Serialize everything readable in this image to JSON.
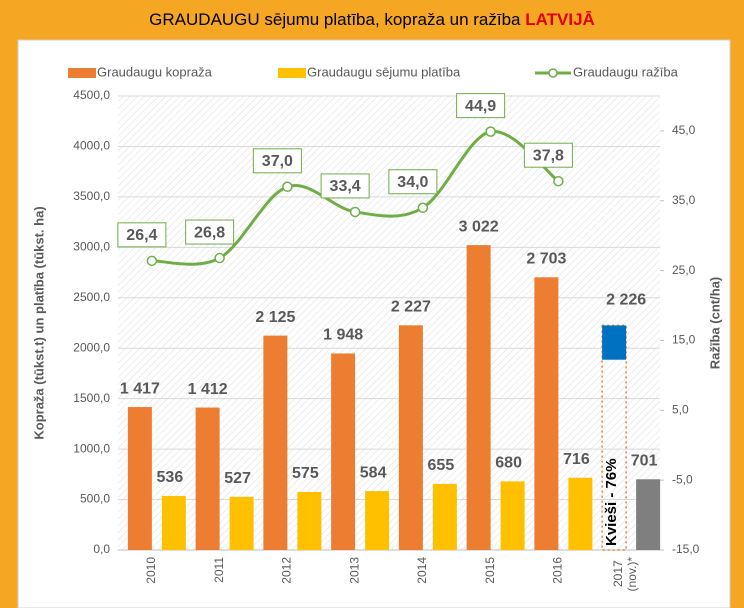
{
  "chart_data": {
    "type": "bar_line",
    "title": "GRAUDAUGU sējumu platība, kopraža un ražība ",
    "title_highlight": "LATVIJĀ",
    "y_label": "Kopraža (tūkst.t) un platība (tūkst. ha)",
    "y2_label": "Ražība (cnt/ha)",
    "categories": [
      "2010",
      "2011",
      "2012",
      "2013",
      "2014",
      "2015",
      "2016",
      "2017 (nov.)*"
    ],
    "ylim": [
      0,
      4500
    ],
    "yticks": [
      {
        "value": 0,
        "label": "0,0"
      },
      {
        "value": 500,
        "label": "500,0"
      },
      {
        "value": 1000,
        "label": "1000,0"
      },
      {
        "value": 1500,
        "label": "1500,0"
      },
      {
        "value": 2000,
        "label": "2000,0"
      },
      {
        "value": 2500,
        "label": "2500,0"
      },
      {
        "value": 3000,
        "label": "3000,0"
      },
      {
        "value": 3500,
        "label": "3500,0"
      },
      {
        "value": 4000,
        "label": "4000,0"
      },
      {
        "value": 4500,
        "label": "4500,0"
      }
    ],
    "y2lim": [
      -15,
      50
    ],
    "y2ticks": [
      {
        "value": -15,
        "label": "-15,0"
      },
      {
        "value": -5,
        "label": "-5,0"
      },
      {
        "value": 5,
        "label": "5,0"
      },
      {
        "value": 15,
        "label": "15,0"
      },
      {
        "value": 25,
        "label": "25,0"
      },
      {
        "value": 35,
        "label": "35,0"
      },
      {
        "value": 45,
        "label": "45,0"
      }
    ],
    "grid": true,
    "series": [
      {
        "name": "Graudaugu kopraža",
        "color": "#ed7d31",
        "values": [
          1417,
          1412,
          2125,
          1948,
          2227,
          3022,
          2703,
          2226
        ],
        "value_labels": [
          "1 417",
          "1 412",
          "2 125",
          "1 948",
          "2 227",
          "3 022",
          "2 703",
          "2 226"
        ]
      },
      {
        "name": "Graudaugu sējumu platība",
        "color": "#ffc000",
        "last_color": "#7f7f7f",
        "values": [
          536,
          527,
          575,
          584,
          655,
          680,
          716,
          701
        ]
      },
      {
        "name": "Graudaugu ražība",
        "color": "#70ad47",
        "axis": "y2",
        "values": [
          26.4,
          26.8,
          37.0,
          33.4,
          34.0,
          44.9,
          37.8,
          null
        ],
        "value_labels": [
          "26,4",
          "26,8",
          "37,0",
          "33,4",
          "34,0",
          "44,9",
          "37,8",
          null
        ]
      }
    ],
    "last_bar": {
      "top_segment": 340,
      "top_color": "#0070c0",
      "note": "Kvieši - 76%"
    }
  }
}
